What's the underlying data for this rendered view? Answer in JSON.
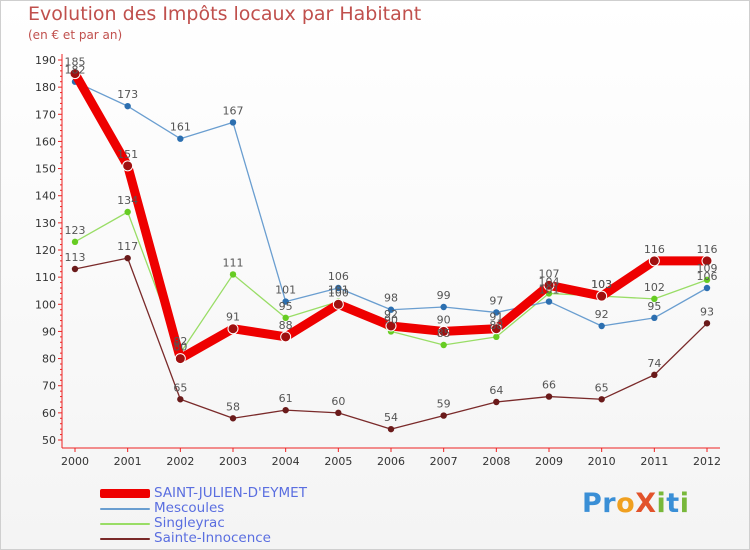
{
  "header": {
    "title": "Evolution des Impôts locaux par Habitant",
    "subtitle": "(en € et par an)"
  },
  "logo": {
    "text": "Proxiti",
    "letters": [
      {
        "ch": "P",
        "color": "#3a8fd6"
      },
      {
        "ch": "r",
        "color": "#3a8fd6"
      },
      {
        "ch": "o",
        "color": "#f0a020"
      },
      {
        "ch": "X",
        "color": "#e2532b"
      },
      {
        "ch": "i",
        "color": "#78b83a"
      },
      {
        "ch": "t",
        "color": "#3a8fd6"
      },
      {
        "ch": "i",
        "color": "#78b83a"
      }
    ]
  },
  "chart_data": {
    "type": "line",
    "title": "Evolution des Impôts locaux par Habitant",
    "subtitle": "(en € et par an)",
    "xlabel": "",
    "ylabel": "",
    "x": [
      "2000",
      "2001",
      "2002",
      "2003",
      "2004",
      "2005",
      "2006",
      "2007",
      "2008",
      "2009",
      "2010",
      "2011",
      "2012"
    ],
    "ylim": [
      50,
      190
    ],
    "yticks": [
      50,
      60,
      70,
      80,
      90,
      100,
      110,
      120,
      130,
      140,
      150,
      160,
      170,
      180,
      190
    ],
    "grid": false,
    "legend_position": "bottom-left",
    "series": [
      {
        "name": "SAINT-JULIEN-D'EYMET",
        "color": "#ee0000",
        "marker_color": "#a01010",
        "emphasis": "thick",
        "values": [
          185,
          151,
          80,
          91,
          88,
          100,
          92,
          90,
          91,
          107,
          103,
          116,
          116
        ],
        "labels": [
          "185",
          "151",
          "80",
          "91",
          "88",
          "100",
          "92",
          "90",
          "91",
          "107",
          "103",
          "116",
          "116"
        ]
      },
      {
        "name": "Mescoules",
        "color": "#6a9ed0",
        "marker_color": "#2c6fb0",
        "emphasis": "thin",
        "values": [
          182,
          173,
          161,
          167,
          101,
          106,
          98,
          99,
          97,
          101,
          92,
          95,
          106
        ],
        "labels": [
          "182",
          "173",
          "161",
          "167",
          "101",
          "106",
          "98",
          "99",
          "97",
          "101",
          "92",
          "95",
          "106"
        ]
      },
      {
        "name": "Singleyrac",
        "color": "#99dd66",
        "marker_color": "#66cc22",
        "emphasis": "thin",
        "values": [
          123,
          134,
          82,
          111,
          95,
          101,
          90,
          85,
          88,
          104,
          103,
          102,
          109
        ],
        "labels": [
          "123",
          "134",
          "82",
          "111",
          "95",
          "101",
          "90",
          "85",
          "88",
          "104",
          "103",
          "102",
          "109"
        ]
      },
      {
        "name": "Sainte-Innocence",
        "color": "#7a2a2a",
        "marker_color": "#6a1a1a",
        "emphasis": "thin",
        "values": [
          113,
          117,
          65,
          58,
          61,
          60,
          54,
          59,
          64,
          66,
          65,
          74,
          93
        ],
        "labels": [
          "113",
          "117",
          "65",
          "58",
          "61",
          "60",
          "54",
          "59",
          "64",
          "66",
          "65",
          "74",
          "93"
        ]
      }
    ]
  }
}
